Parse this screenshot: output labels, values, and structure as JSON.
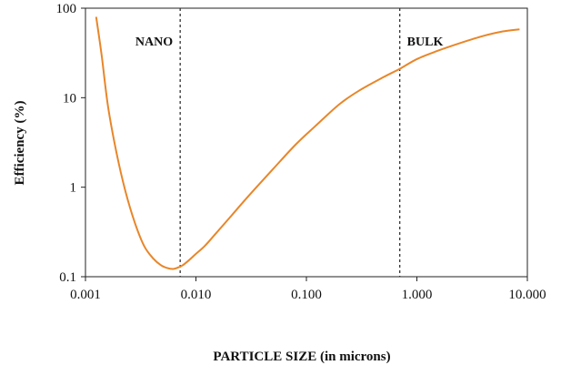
{
  "chart_data": {
    "type": "line",
    "title": "",
    "xlabel": "PARTICLE SIZE (in microns)",
    "ylabel": "Efficiency (%)",
    "xscale": "log",
    "yscale": "log",
    "xlim": [
      0.001,
      10
    ],
    "ylim": [
      0.1,
      100
    ],
    "grid": false,
    "legend": "none",
    "line_color": "#E8862A",
    "x_ticks": [
      0.001,
      0.01,
      0.1,
      1,
      10
    ],
    "x_tick_labels": [
      "0.001",
      "0.010",
      "0.100",
      "1.000",
      "10.000"
    ],
    "y_ticks": [
      0.1,
      1,
      10,
      100
    ],
    "y_tick_labels": [
      "0.1",
      "1",
      "10",
      "100"
    ],
    "vertical_lines": [
      {
        "x": 0.0072,
        "label": "NANO",
        "label_side": "left"
      },
      {
        "x": 0.7,
        "label": "BULK",
        "label_side": "right"
      }
    ],
    "series": [
      {
        "x": [
          0.00125,
          0.0014,
          0.0016,
          0.0019,
          0.0023,
          0.0028,
          0.0034,
          0.0041,
          0.0048,
          0.0055,
          0.0062,
          0.0068,
          0.0075,
          0.0085,
          0.01,
          0.012,
          0.015,
          0.02,
          0.03,
          0.05,
          0.08,
          0.12,
          0.2,
          0.3,
          0.5,
          0.7,
          1.0,
          1.5,
          2.5,
          4.0,
          6.0,
          8.5
        ],
        "y": [
          80,
          30,
          8,
          2.5,
          0.9,
          0.4,
          0.22,
          0.16,
          0.135,
          0.125,
          0.122,
          0.126,
          0.133,
          0.15,
          0.18,
          0.22,
          0.3,
          0.45,
          0.8,
          1.6,
          3.0,
          4.8,
          8.5,
          12,
          17,
          21,
          27,
          33,
          41,
          49,
          55,
          58
        ]
      }
    ]
  }
}
